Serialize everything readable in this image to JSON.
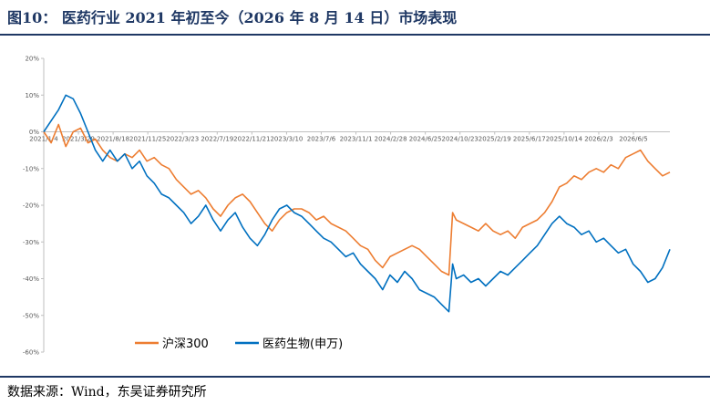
{
  "page": {
    "title": "图10：  医药行业 2021 年初至今（2026 年 8 月 14 日）市场表现",
    "source": "数据来源：Wind，东吴证券研究所"
  },
  "chart_data": {
    "type": "line",
    "title": "",
    "xlabel": "",
    "ylabel": "",
    "ylim": [
      -0.6,
      0.2
    ],
    "yticks": [
      0.2,
      0.1,
      0.0,
      -0.1,
      -0.2,
      -0.3,
      -0.4,
      -0.5,
      -0.6
    ],
    "ytick_labels": [
      "20%",
      "10%",
      "0%",
      "-10%",
      "-20%",
      "-30%",
      "-40%",
      "-50%",
      "-60%"
    ],
    "xtick_labels": [
      "2021/1/4",
      "2021/3/29",
      "2021/8/18",
      "2021/11/25",
      "2022/3/23",
      "2022/7/19",
      "2022/11/21",
      "2023/3/10",
      "2023/7/6",
      "2023/11/1",
      "2024/2/28",
      "2024/6/25",
      "2024/10/23",
      "2025/2/19",
      "2025/6/17",
      "2025/10/14",
      "2026/2/3",
      "2026/6/5"
    ],
    "grid": false,
    "legend": "bottom-left",
    "series": [
      {
        "name": "沪深300",
        "color": "#ed7d31",
        "points": [
          [
            0,
            0.0
          ],
          [
            2,
            -0.03
          ],
          [
            4,
            0.02
          ],
          [
            6,
            -0.04
          ],
          [
            8,
            0.0
          ],
          [
            10,
            0.01
          ],
          [
            12,
            -0.03
          ],
          [
            14,
            -0.02
          ],
          [
            16,
            -0.05
          ],
          [
            18,
            -0.07
          ],
          [
            20,
            -0.08
          ],
          [
            22,
            -0.06
          ],
          [
            24,
            -0.07
          ],
          [
            26,
            -0.05
          ],
          [
            28,
            -0.08
          ],
          [
            30,
            -0.07
          ],
          [
            32,
            -0.09
          ],
          [
            34,
            -0.1
          ],
          [
            36,
            -0.13
          ],
          [
            38,
            -0.15
          ],
          [
            40,
            -0.17
          ],
          [
            42,
            -0.16
          ],
          [
            44,
            -0.18
          ],
          [
            46,
            -0.21
          ],
          [
            48,
            -0.23
          ],
          [
            50,
            -0.2
          ],
          [
            52,
            -0.18
          ],
          [
            54,
            -0.17
          ],
          [
            56,
            -0.19
          ],
          [
            58,
            -0.22
          ],
          [
            60,
            -0.25
          ],
          [
            62,
            -0.27
          ],
          [
            64,
            -0.24
          ],
          [
            66,
            -0.22
          ],
          [
            68,
            -0.21
          ],
          [
            70,
            -0.21
          ],
          [
            72,
            -0.22
          ],
          [
            74,
            -0.24
          ],
          [
            76,
            -0.23
          ],
          [
            78,
            -0.25
          ],
          [
            80,
            -0.26
          ],
          [
            82,
            -0.27
          ],
          [
            84,
            -0.29
          ],
          [
            86,
            -0.31
          ],
          [
            88,
            -0.32
          ],
          [
            90,
            -0.35
          ],
          [
            92,
            -0.37
          ],
          [
            94,
            -0.34
          ],
          [
            96,
            -0.33
          ],
          [
            98,
            -0.32
          ],
          [
            100,
            -0.31
          ],
          [
            102,
            -0.32
          ],
          [
            104,
            -0.34
          ],
          [
            106,
            -0.36
          ],
          [
            108,
            -0.38
          ],
          [
            110,
            -0.39
          ],
          [
            111,
            -0.22
          ],
          [
            112,
            -0.24
          ],
          [
            114,
            -0.25
          ],
          [
            116,
            -0.26
          ],
          [
            118,
            -0.27
          ],
          [
            120,
            -0.25
          ],
          [
            122,
            -0.27
          ],
          [
            124,
            -0.28
          ],
          [
            126,
            -0.27
          ],
          [
            128,
            -0.29
          ],
          [
            130,
            -0.26
          ],
          [
            132,
            -0.25
          ],
          [
            134,
            -0.24
          ],
          [
            136,
            -0.22
          ],
          [
            138,
            -0.19
          ],
          [
            140,
            -0.15
          ],
          [
            142,
            -0.14
          ],
          [
            144,
            -0.12
          ],
          [
            146,
            -0.13
          ],
          [
            148,
            -0.11
          ],
          [
            150,
            -0.1
          ],
          [
            152,
            -0.11
          ],
          [
            154,
            -0.09
          ],
          [
            156,
            -0.1
          ],
          [
            158,
            -0.07
          ],
          [
            160,
            -0.06
          ],
          [
            162,
            -0.05
          ],
          [
            164,
            -0.08
          ],
          [
            166,
            -0.1
          ],
          [
            168,
            -0.12
          ],
          [
            170,
            -0.11
          ]
        ]
      },
      {
        "name": "医药生物(申万)",
        "color": "#0070c0",
        "points": [
          [
            0,
            0.0
          ],
          [
            2,
            0.03
          ],
          [
            4,
            0.06
          ],
          [
            6,
            0.1
          ],
          [
            8,
            0.09
          ],
          [
            10,
            0.05
          ],
          [
            12,
            0.0
          ],
          [
            14,
            -0.05
          ],
          [
            16,
            -0.08
          ],
          [
            18,
            -0.05
          ],
          [
            20,
            -0.08
          ],
          [
            22,
            -0.06
          ],
          [
            24,
            -0.1
          ],
          [
            26,
            -0.08
          ],
          [
            28,
            -0.12
          ],
          [
            30,
            -0.14
          ],
          [
            32,
            -0.17
          ],
          [
            34,
            -0.18
          ],
          [
            36,
            -0.2
          ],
          [
            38,
            -0.22
          ],
          [
            40,
            -0.25
          ],
          [
            42,
            -0.23
          ],
          [
            44,
            -0.2
          ],
          [
            46,
            -0.24
          ],
          [
            48,
            -0.27
          ],
          [
            50,
            -0.24
          ],
          [
            52,
            -0.22
          ],
          [
            54,
            -0.26
          ],
          [
            56,
            -0.29
          ],
          [
            58,
            -0.31
          ],
          [
            60,
            -0.28
          ],
          [
            62,
            -0.24
          ],
          [
            64,
            -0.21
          ],
          [
            66,
            -0.2
          ],
          [
            68,
            -0.22
          ],
          [
            70,
            -0.23
          ],
          [
            72,
            -0.25
          ],
          [
            74,
            -0.27
          ],
          [
            76,
            -0.29
          ],
          [
            78,
            -0.3
          ],
          [
            80,
            -0.32
          ],
          [
            82,
            -0.34
          ],
          [
            84,
            -0.33
          ],
          [
            86,
            -0.36
          ],
          [
            88,
            -0.38
          ],
          [
            90,
            -0.4
          ],
          [
            92,
            -0.43
          ],
          [
            94,
            -0.39
          ],
          [
            96,
            -0.41
          ],
          [
            98,
            -0.38
          ],
          [
            100,
            -0.4
          ],
          [
            102,
            -0.43
          ],
          [
            104,
            -0.44
          ],
          [
            106,
            -0.45
          ],
          [
            108,
            -0.47
          ],
          [
            110,
            -0.49
          ],
          [
            111,
            -0.36
          ],
          [
            112,
            -0.4
          ],
          [
            114,
            -0.39
          ],
          [
            116,
            -0.41
          ],
          [
            118,
            -0.4
          ],
          [
            120,
            -0.42
          ],
          [
            122,
            -0.4
          ],
          [
            124,
            -0.38
          ],
          [
            126,
            -0.39
          ],
          [
            128,
            -0.37
          ],
          [
            130,
            -0.35
          ],
          [
            132,
            -0.33
          ],
          [
            134,
            -0.31
          ],
          [
            136,
            -0.28
          ],
          [
            138,
            -0.25
          ],
          [
            140,
            -0.23
          ],
          [
            142,
            -0.25
          ],
          [
            144,
            -0.26
          ],
          [
            146,
            -0.28
          ],
          [
            148,
            -0.27
          ],
          [
            150,
            -0.3
          ],
          [
            152,
            -0.29
          ],
          [
            154,
            -0.31
          ],
          [
            156,
            -0.33
          ],
          [
            158,
            -0.32
          ],
          [
            160,
            -0.36
          ],
          [
            162,
            -0.38
          ],
          [
            164,
            -0.41
          ],
          [
            166,
            -0.4
          ],
          [
            168,
            -0.37
          ],
          [
            170,
            -0.32
          ]
        ]
      }
    ]
  }
}
